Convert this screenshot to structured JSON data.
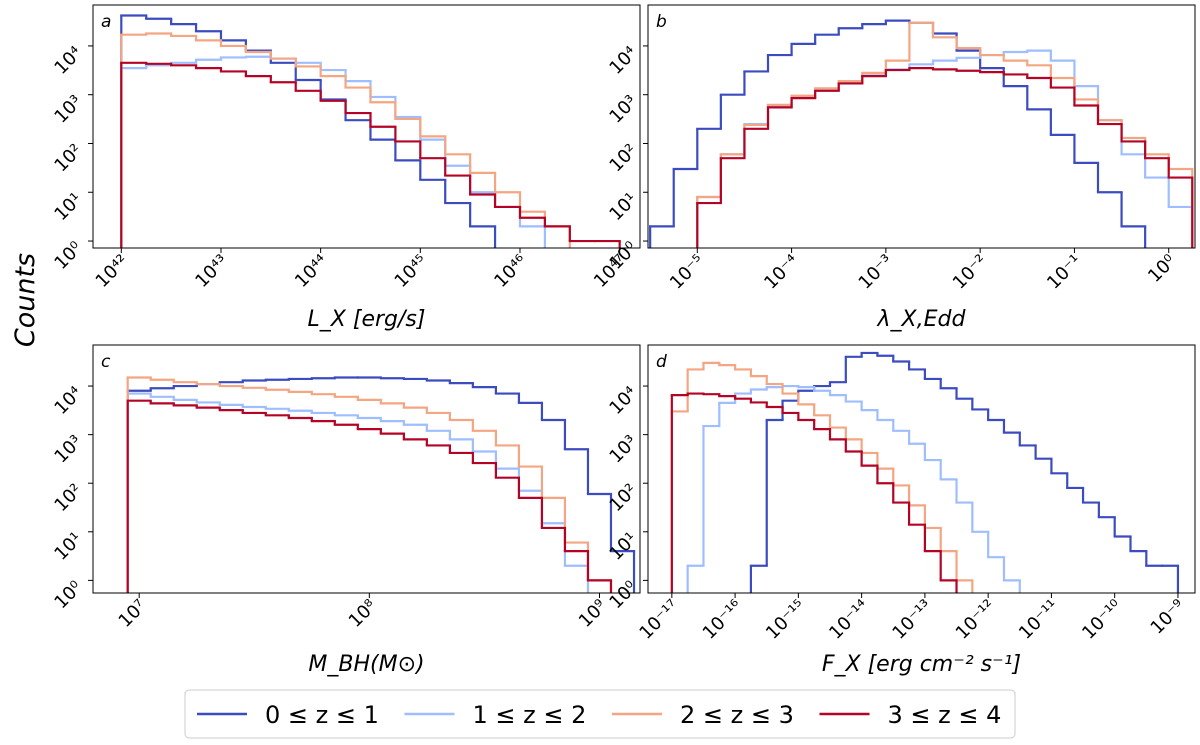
{
  "chart_data": [
    {
      "type": "histogram",
      "panel": "a",
      "xlabel": "L_X [erg/s]",
      "ylabel": "Counts",
      "legend": "bottom",
      "xscale": "log",
      "yscale": "log",
      "xlim": [
        5.2e+41,
        1.6e+47
      ],
      "ylim": [
        0.72,
        69000
      ],
      "xticks": [
        {
          "value": 1e+42,
          "label": "10⁴²"
        },
        {
          "value": 1e+43,
          "label": "10⁴³"
        },
        {
          "value": 1e+44,
          "label": "10⁴⁴"
        },
        {
          "value": 1e+45,
          "label": "10⁴⁵"
        },
        {
          "value": 1e+46,
          "label": "10⁴⁶"
        },
        {
          "value": 1e+47,
          "label": "10⁴⁷"
        }
      ],
      "yticks": [
        {
          "value": 1,
          "label": "10⁰"
        },
        {
          "value": 10,
          "label": "10¹"
        },
        {
          "value": 100,
          "label": "10²"
        },
        {
          "value": 1000,
          "label": "10³"
        },
        {
          "value": 10000,
          "label": "10⁴"
        }
      ],
      "bins": [
        1e+42,
        1.778e+42,
        3.162e+42,
        5.623e+42,
        1e+43,
        1.778e+43,
        3.162e+43,
        5.623e+43,
        1e+44,
        1.778e+44,
        3.162e+44,
        5.623e+44,
        1e+45,
        1.778e+45,
        3.162e+45,
        5.623e+45,
        1e+46,
        1.778e+46,
        3.162e+46,
        5.623e+46,
        1e+47
      ],
      "series": [
        {
          "name": "0 ≤ z ≤ 1",
          "color": "#3b4cc0",
          "values": [
            42000,
            36000,
            28000,
            20000,
            13000,
            8000,
            4500,
            2000,
            800,
            300,
            120,
            45,
            18,
            6,
            2,
            null,
            null,
            null,
            null,
            null
          ]
        },
        {
          "name": "1 ≤ z ≤ 2",
          "color": "#9ebeff",
          "values": [
            3500,
            4000,
            4500,
            5200,
            5800,
            6000,
            5500,
            4500,
            3200,
            1900,
            900,
            350,
            120,
            35,
            10,
            5,
            2,
            null,
            null,
            null
          ]
        },
        {
          "name": "2 ≤ z ≤ 3",
          "color": "#f4a582",
          "values": [
            17000,
            18000,
            16000,
            13000,
            10000,
            7500,
            5500,
            3800,
            2400,
            1400,
            700,
            320,
            140,
            60,
            25,
            10,
            4,
            2,
            null,
            null
          ]
        },
        {
          "name": "3 ≤ z ≤ 4",
          "color": "#b40426",
          "values": [
            4500,
            4300,
            4000,
            3500,
            3000,
            2400,
            1800,
            1200,
            750,
            420,
            220,
            110,
            50,
            22,
            9,
            5,
            3,
            2,
            1,
            1
          ]
        }
      ]
    },
    {
      "type": "histogram",
      "panel": "b",
      "xlabel": "λ_X,Edd",
      "xscale": "log",
      "yscale": "log",
      "xlim": [
        3e-06,
        1.9
      ],
      "ylim": [
        0.72,
        69000
      ],
      "xticks": [
        {
          "value": 1e-05,
          "label": "10⁻⁵"
        },
        {
          "value": 0.0001,
          "label": "10⁻⁴"
        },
        {
          "value": 0.001,
          "label": "10⁻³"
        },
        {
          "value": 0.01,
          "label": "10⁻²"
        },
        {
          "value": 0.1,
          "label": "10⁻¹"
        },
        {
          "value": 1,
          "label": "10⁰"
        }
      ],
      "yticks": [
        {
          "value": 1,
          "label": "10⁰"
        },
        {
          "value": 10,
          "label": "10¹"
        },
        {
          "value": 100,
          "label": "10²"
        },
        {
          "value": 1000,
          "label": "10³"
        },
        {
          "value": 10000,
          "label": "10⁴"
        }
      ],
      "bins": [
        3.162e-06,
        5.623e-06,
        1e-05,
        1.778e-05,
        3.162e-05,
        5.623e-05,
        0.0001,
        0.0001778,
        0.0003162,
        0.0005623,
        0.001,
        0.001778,
        0.003162,
        0.005623,
        0.01,
        0.01778,
        0.03162,
        0.05623,
        0.1,
        0.1778,
        0.3162,
        0.5623,
        1,
        1.778
      ],
      "series": [
        {
          "color": "#3b4cc0",
          "values": [
            2,
            30,
            200,
            1000,
            3000,
            6500,
            11000,
            17000,
            23000,
            28000,
            33000,
            30000,
            18000,
            8000,
            3500,
            1500,
            500,
            150,
            40,
            10,
            2,
            null,
            null
          ]
        },
        {
          "color": "#9ebeff",
          "values": [
            null,
            null,
            8,
            60,
            250,
            600,
            900,
            1300,
            1800,
            2500,
            3300,
            4200,
            5000,
            5700,
            6500,
            7500,
            8000,
            5000,
            1500,
            300,
            60,
            20,
            5
          ]
        },
        {
          "color": "#f4a582",
          "values": [
            null,
            null,
            8,
            60,
            240,
            620,
            950,
            1350,
            1900,
            2800,
            5000,
            30000,
            15000,
            9000,
            6500,
            5000,
            4000,
            2200,
            800,
            300,
            130,
            60,
            30
          ]
        },
        {
          "color": "#b40426",
          "values": [
            null,
            null,
            6,
            50,
            200,
            550,
            850,
            1200,
            1700,
            2400,
            3200,
            3500,
            3300,
            3100,
            2900,
            2600,
            2200,
            1400,
            600,
            250,
            110,
            50,
            20
          ]
        }
      ]
    },
    {
      "type": "histogram",
      "panel": "c",
      "xlabel": "M_BH(M⊙)",
      "xscale": "log",
      "yscale": "log",
      "xlim": [
        6300000.0,
        1500000000.0
      ],
      "ylim": [
        0.55,
        70000
      ],
      "xticks": [
        {
          "value": 10000000.0,
          "label": "10⁷"
        },
        {
          "value": 100000000.0,
          "label": "10⁸"
        },
        {
          "value": 1000000000.0,
          "label": "10⁹"
        }
      ],
      "yticks": [
        {
          "value": 1,
          "label": "10⁰"
        },
        {
          "value": 10,
          "label": "10¹"
        },
        {
          "value": 100,
          "label": "10²"
        },
        {
          "value": 1000,
          "label": "10³"
        },
        {
          "value": 10000,
          "label": "10⁴"
        }
      ],
      "bins": [
        8913000.0,
        11220000.0,
        14130000.0,
        17780000.0,
        22390000.0,
        28180000.0,
        35480000.0,
        44670000.0,
        56230000.0,
        70790000.0,
        89130000.0,
        112200000.0,
        141300000.0,
        177800000.0,
        223900000.0,
        281800000.0,
        354800000.0,
        446700000.0,
        562300000.0,
        707900000.0,
        891300000.0,
        1122000000.0,
        1413000000.0
      ],
      "series": [
        {
          "color": "#3b4cc0",
          "values": [
            8000,
            9000,
            10000,
            11000,
            12000,
            13000,
            13500,
            14000,
            14500,
            15000,
            15000,
            14500,
            14000,
            13000,
            11500,
            9500,
            7000,
            4500,
            2000,
            500,
            60,
            4
          ]
        },
        {
          "color": "#9ebeff",
          "values": [
            7000,
            6000,
            5200,
            4600,
            4100,
            3700,
            3400,
            3100,
            2800,
            2500,
            2200,
            1900,
            1600,
            1200,
            800,
            450,
            200,
            70,
            15,
            2,
            null,
            null
          ]
        },
        {
          "color": "#f4a582",
          "values": [
            15000,
            13500,
            12000,
            11000,
            10000,
            9200,
            8400,
            7600,
            6800,
            6000,
            5200,
            4400,
            3600,
            2800,
            2000,
            1200,
            600,
            220,
            50,
            6,
            1,
            null
          ]
        },
        {
          "color": "#b40426",
          "values": [
            5000,
            4400,
            4000,
            3600,
            3200,
            2800,
            2500,
            2200,
            1900,
            1600,
            1300,
            1050,
            800,
            600,
            420,
            260,
            130,
            50,
            12,
            4,
            1,
            null
          ]
        }
      ]
    },
    {
      "type": "histogram",
      "panel": "d",
      "xlabel": "F_X [erg cm⁻² s⁻¹]",
      "xscale": "log",
      "yscale": "log",
      "xlim": [
        4.2e-18,
        1.86e-09
      ],
      "ylim": [
        0.55,
        70000
      ],
      "xticks": [
        {
          "value": 1e-17,
          "label": "10⁻¹⁷"
        },
        {
          "value": 1e-16,
          "label": "10⁻¹⁶"
        },
        {
          "value": 1e-15,
          "label": "10⁻¹⁵"
        },
        {
          "value": 1e-14,
          "label": "10⁻¹⁴"
        },
        {
          "value": 1e-13,
          "label": "10⁻¹³"
        },
        {
          "value": 1e-12,
          "label": "10⁻¹²"
        },
        {
          "value": 1e-11,
          "label": "10⁻¹¹"
        },
        {
          "value": 1e-10,
          "label": "10⁻¹⁰"
        },
        {
          "value": 1e-09,
          "label": "10⁻⁹"
        }
      ],
      "yticks": [
        {
          "value": 1,
          "label": "10⁰"
        },
        {
          "value": 10,
          "label": "10¹"
        },
        {
          "value": 100,
          "label": "10²"
        },
        {
          "value": 1000,
          "label": "10³"
        },
        {
          "value": 10000,
          "label": "10⁴"
        }
      ],
      "bins": [
        5.623e-18,
        1e-17,
        1.778e-17,
        3.162e-17,
        5.623e-17,
        1e-16,
        1.778e-16,
        3.162e-16,
        5.623e-16,
        1e-15,
        1.778e-15,
        3.162e-15,
        5.623e-15,
        1e-14,
        1.778e-14,
        3.162e-14,
        5.623e-14,
        1e-13,
        1.778e-13,
        3.162e-13,
        5.623e-13,
        1e-12,
        1.778e-12,
        3.162e-12,
        5.623e-12,
        1e-11,
        1.778e-11,
        3.162e-11,
        5.623e-11,
        1e-10,
        1.778e-10,
        3.162e-10,
        5.623e-10,
        1e-09,
        1.778e-09
      ],
      "series": [
        {
          "color": "#3b4cc0",
          "values": [
            null,
            null,
            null,
            null,
            null,
            null,
            2,
            2000,
            5000,
            8000,
            10000,
            12000,
            40000,
            48000,
            42000,
            32000,
            22000,
            14000,
            9000,
            5500,
            3300,
            2000,
            1100,
            600,
            320,
            160,
            80,
            40,
            20,
            8,
            4,
            2,
            2,
            null
          ]
        },
        {
          "color": "#9ebeff",
          "values": [
            null,
            null,
            2,
            1500,
            4500,
            7000,
            8500,
            9500,
            10000,
            9500,
            8000,
            6500,
            4800,
            3200,
            2000,
            1200,
            650,
            300,
            120,
            40,
            10,
            3,
            1,
            null,
            null,
            null,
            null,
            null,
            null,
            null,
            null,
            null,
            null,
            null
          ]
        },
        {
          "color": "#f4a582",
          "values": [
            null,
            3000,
            22000,
            30000,
            27000,
            22000,
            16000,
            11000,
            7000,
            4200,
            2500,
            1400,
            800,
            420,
            200,
            90,
            35,
            12,
            4,
            1,
            null,
            null,
            null,
            null,
            null,
            null,
            null,
            null,
            null,
            null,
            null,
            null,
            null,
            null
          ]
        },
        {
          "color": "#b40426",
          "values": [
            null,
            6500,
            7000,
            6800,
            6200,
            5500,
            4600,
            3700,
            2800,
            2000,
            1300,
            800,
            450,
            230,
            100,
            40,
            14,
            4,
            1,
            null,
            null,
            null,
            null,
            null,
            null,
            null,
            null,
            null,
            null,
            null,
            null,
            null,
            null,
            null
          ]
        }
      ]
    }
  ]
}
